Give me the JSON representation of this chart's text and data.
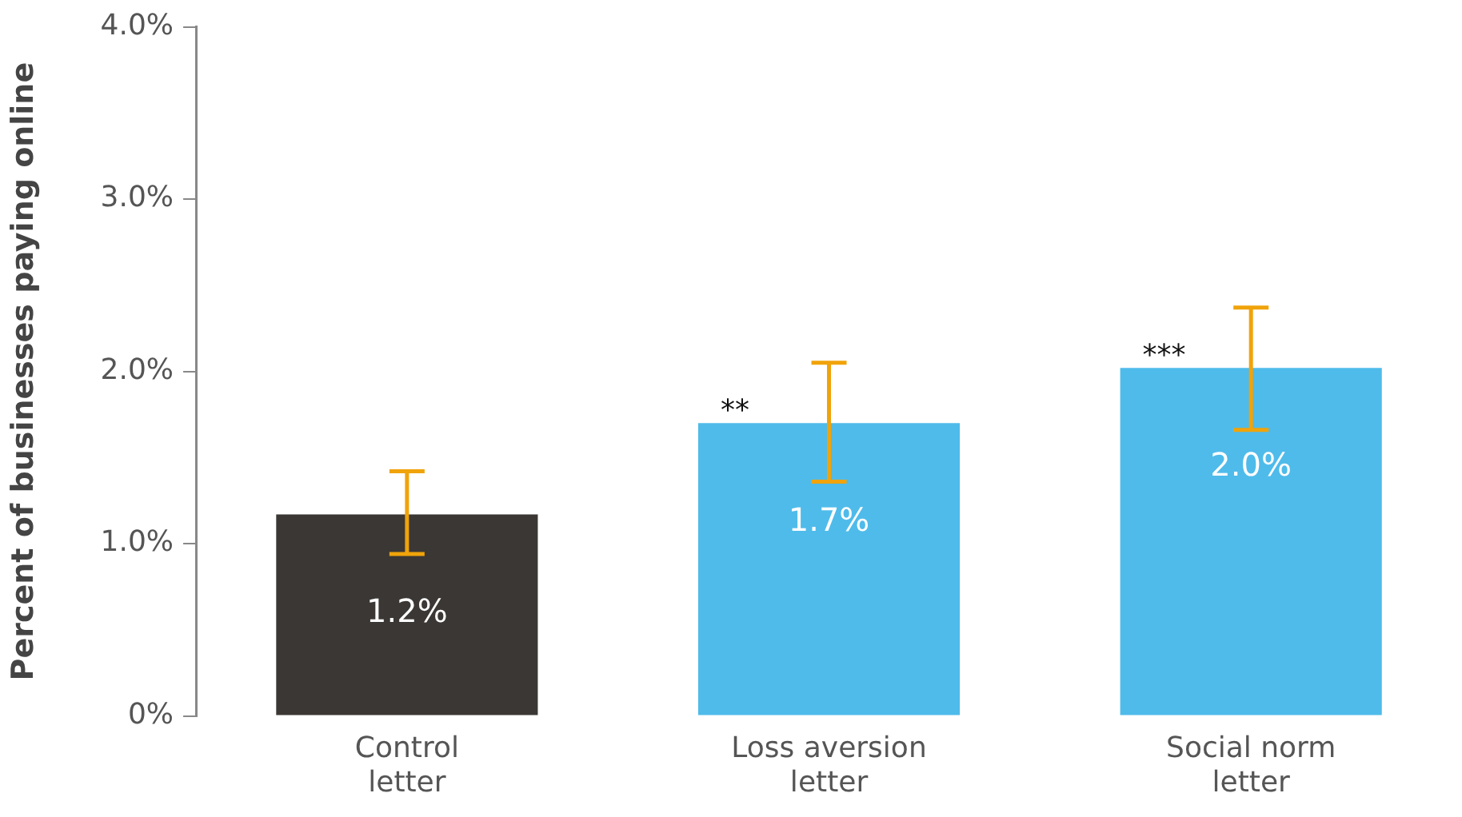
{
  "chart_data": {
    "type": "bar",
    "ylabel": "Percent of businesses paying online",
    "categories": [
      "Control letter",
      "Loss aversion letter",
      "Social norm letter"
    ],
    "values": [
      1.17,
      1.7,
      2.02
    ],
    "colors": [
      "#3b3734",
      "#4fbbea",
      "#4fbbea"
    ],
    "value_labels": [
      "1.2%",
      "1.7%",
      "2.0%"
    ],
    "errors": [
      [
        0.94,
        1.42
      ],
      [
        1.36,
        2.05
      ],
      [
        1.66,
        2.37
      ]
    ],
    "ylim": [
      0,
      4
    ],
    "yticks": [
      {
        "value": 0,
        "label": "0%"
      },
      {
        "value": 1,
        "label": "1.0%"
      },
      {
        "value": 2,
        "label": "2.0%"
      },
      {
        "value": 3,
        "label": "3.0%"
      },
      {
        "value": 4,
        "label": "4.0%"
      }
    ],
    "grid": false,
    "legend": false,
    "annotations": [
      {
        "text": "**",
        "x": "Loss aversion letter",
        "y": 1.7
      },
      {
        "text": "***",
        "x": "Social norm letter",
        "y": 2.02
      }
    ]
  }
}
